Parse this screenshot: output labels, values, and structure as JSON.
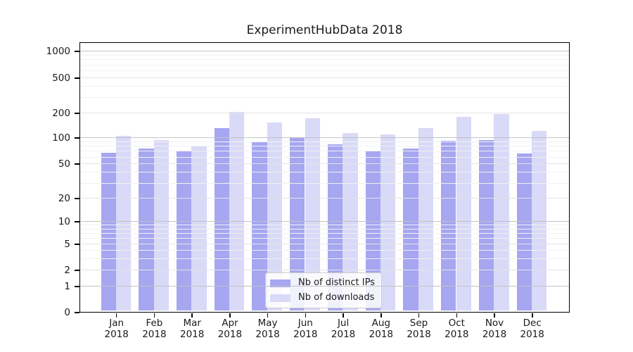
{
  "chart_data": {
    "type": "bar",
    "title": "ExperimentHubData 2018",
    "year_label": "2018",
    "categories": [
      "Jan",
      "Feb",
      "Mar",
      "Apr",
      "May",
      "Jun",
      "Jul",
      "Aug",
      "Sep",
      "Oct",
      "Nov",
      "Dec"
    ],
    "series": [
      {
        "name": "Nb of distinct IPs",
        "color": "#a6a6f1",
        "values": [
          67,
          74,
          69,
          129,
          90,
          99,
          83,
          70,
          75,
          91,
          94,
          65
        ]
      },
      {
        "name": "Nb of downloads",
        "color": "#d9d9f8",
        "values": [
          104,
          94,
          80,
          205,
          152,
          171,
          114,
          109,
          129,
          178,
          192,
          119
        ]
      }
    ],
    "xlabel": "",
    "ylabel": "",
    "yscale": "symlog",
    "yticks": [
      0,
      1,
      2,
      5,
      10,
      20,
      50,
      100,
      200,
      500,
      1000
    ],
    "ylim": [
      0,
      1300
    ],
    "grid": true,
    "legend_position": "lower center",
    "legend": [
      "Nb of distinct IPs",
      "Nb of downloads"
    ],
    "axis_color": "#000000",
    "grid_major_color": "#c3c3c3",
    "grid_minor_color": "#f1f1f1"
  }
}
